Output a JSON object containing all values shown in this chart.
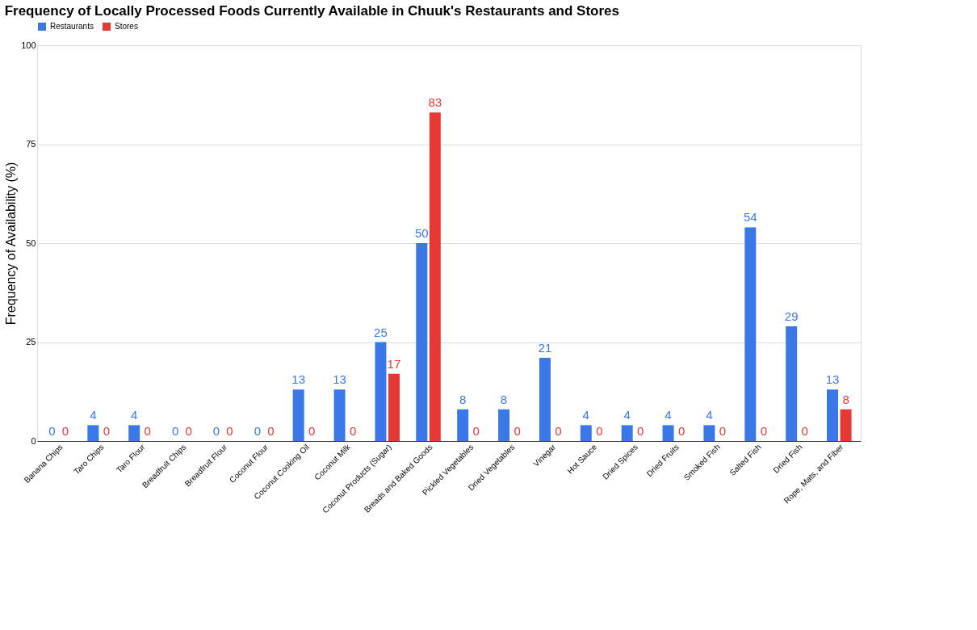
{
  "chart_data": {
    "type": "bar",
    "title": "Frequency of Locally Processed Foods Currently Available in Chuuk's Restaurants and Stores",
    "ylabel": "Frequency of Availability (%)",
    "categories": [
      "Banana Chips",
      "Taro Chips",
      "Taro Flour",
      "Breadfruit Chips",
      "Breadfruit Flour",
      "Coconut Flour",
      "Coconut Cooking Oil",
      "Coconut Milk",
      "Coconut Products (Sugar)",
      "Breads and Baked Goods",
      "Pickled Vegetables",
      "Dried Vegetables",
      "Vinegar",
      "Hot Sauce",
      "Dried Spices",
      "Dried Fruits",
      "Smoked Fish",
      "Salted Fish",
      "Dried Fish",
      "Rope, Mats, and Fiber"
    ],
    "series": [
      {
        "name": "Restaurants",
        "color": "#3b78e7",
        "values": [
          0,
          4,
          4,
          0,
          0,
          0,
          13,
          13,
          25,
          50,
          8,
          8,
          21,
          4,
          4,
          4,
          4,
          54,
          29,
          13
        ]
      },
      {
        "name": "Stores",
        "color": "#e53935",
        "values": [
          0,
          0,
          0,
          0,
          0,
          0,
          0,
          0,
          17,
          83,
          0,
          0,
          0,
          0,
          0,
          0,
          0,
          0,
          0,
          8
        ]
      }
    ],
    "ylim": [
      0,
      100
    ],
    "yticks": [
      0,
      25,
      50,
      75,
      100
    ],
    "grid": "y",
    "legend": "top",
    "data_labels": true
  }
}
